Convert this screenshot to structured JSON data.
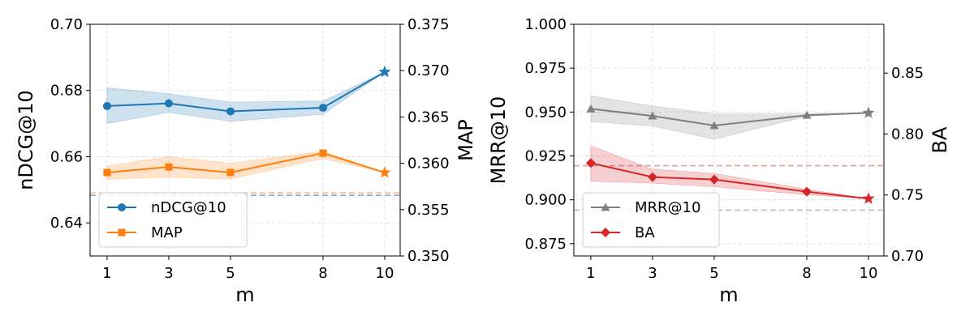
{
  "chart_data": [
    {
      "type": "line",
      "xlabel": "m",
      "x": [
        1,
        3,
        5,
        8,
        10
      ],
      "xticks": [
        "1",
        "3",
        "5",
        "8",
        "10"
      ],
      "xlim": [
        0.45,
        10.5
      ],
      "left_axis": {
        "label": "nDCG@10",
        "ylim": [
          0.63,
          0.7
        ],
        "ticks": [
          0.64,
          0.66,
          0.68,
          0.7
        ],
        "tick_labels": [
          "0.64",
          "0.66",
          "0.68",
          "0.70"
        ]
      },
      "right_axis": {
        "label": "MAP",
        "ylim": [
          0.35,
          0.375
        ],
        "ticks": [
          0.35,
          0.355,
          0.36,
          0.365,
          0.37,
          0.375
        ],
        "tick_labels": [
          "0.350",
          "0.355",
          "0.360",
          "0.365",
          "0.370",
          "0.375"
        ]
      },
      "series": [
        {
          "name": "nDCG@10",
          "axis": "left",
          "color": "#1f77b4",
          "marker": "circle",
          "last_marker": "star",
          "values": [
            0.6753,
            0.6761,
            0.6737,
            0.6748,
            0.6856
          ],
          "band_upper": [
            0.6808,
            0.679,
            0.6765,
            0.6768,
            0.6856
          ],
          "band_lower": [
            0.67,
            0.6734,
            0.6707,
            0.6728,
            0.6856
          ],
          "baseline": 0.6483,
          "baseline_color": "#8aa9c8"
        },
        {
          "name": "MAP",
          "axis": "right",
          "color": "#ff7f0e",
          "marker": "square",
          "last_marker": "star",
          "values": [
            0.359,
            0.3596,
            0.359,
            0.3611,
            0.359
          ],
          "band_upper": [
            0.3597,
            0.3607,
            0.36,
            0.3613,
            0.359
          ],
          "band_lower": [
            0.3583,
            0.3585,
            0.3583,
            0.3605,
            0.359
          ],
          "baseline": 0.3568,
          "baseline_color": "#f4b98a"
        }
      ],
      "legend": {
        "location": "lower-left",
        "entries": [
          "nDCG@10",
          "MAP"
        ]
      },
      "grid": true
    },
    {
      "type": "line",
      "xlabel": "m",
      "x": [
        1,
        3,
        5,
        8,
        10
      ],
      "xticks": [
        "1",
        "3",
        "5",
        "8",
        "10"
      ],
      "xlim": [
        0.45,
        10.5
      ],
      "left_axis": {
        "label": "MRR@10",
        "ylim": [
          0.868,
          1.0
        ],
        "ticks": [
          0.875,
          0.9,
          0.925,
          0.95,
          0.975,
          1.0
        ],
        "tick_labels": [
          "0.875",
          "0.900",
          "0.925",
          "0.950",
          "0.975",
          "1.000"
        ]
      },
      "right_axis": {
        "label": "BA",
        "ylim": [
          0.7,
          0.89
        ],
        "ticks": [
          0.7,
          0.75,
          0.8,
          0.85
        ],
        "tick_labels": [
          "0.70",
          "0.75",
          "0.80",
          "0.85"
        ]
      },
      "series": [
        {
          "name": "MRR@10",
          "axis": "left",
          "color": "#7f7f7f",
          "marker": "triangle",
          "last_marker": "star",
          "values": [
            0.9518,
            0.9478,
            0.9423,
            0.9482,
            0.9495
          ],
          "band_upper": [
            0.9592,
            0.9535,
            0.949,
            0.949,
            0.9495
          ],
          "band_lower": [
            0.9445,
            0.942,
            0.9345,
            0.9475,
            0.9495
          ],
          "baseline": 0.8941,
          "baseline_color": "#bdbdbd"
        },
        {
          "name": "BA",
          "axis": "right",
          "color": "#d62728",
          "marker": "diamond",
          "last_marker": "star",
          "values": [
            0.7762,
            0.7647,
            0.7627,
            0.7527,
            0.747
          ],
          "band_upper": [
            0.7903,
            0.7712,
            0.7677,
            0.7547,
            0.747
          ],
          "band_lower": [
            0.7612,
            0.7597,
            0.7567,
            0.7502,
            0.747
          ],
          "baseline": 0.774,
          "baseline_color": "#e99a9a"
        }
      ],
      "legend": {
        "location": "lower-left",
        "entries": [
          "MRR@10",
          "BA"
        ]
      },
      "grid": true
    }
  ]
}
